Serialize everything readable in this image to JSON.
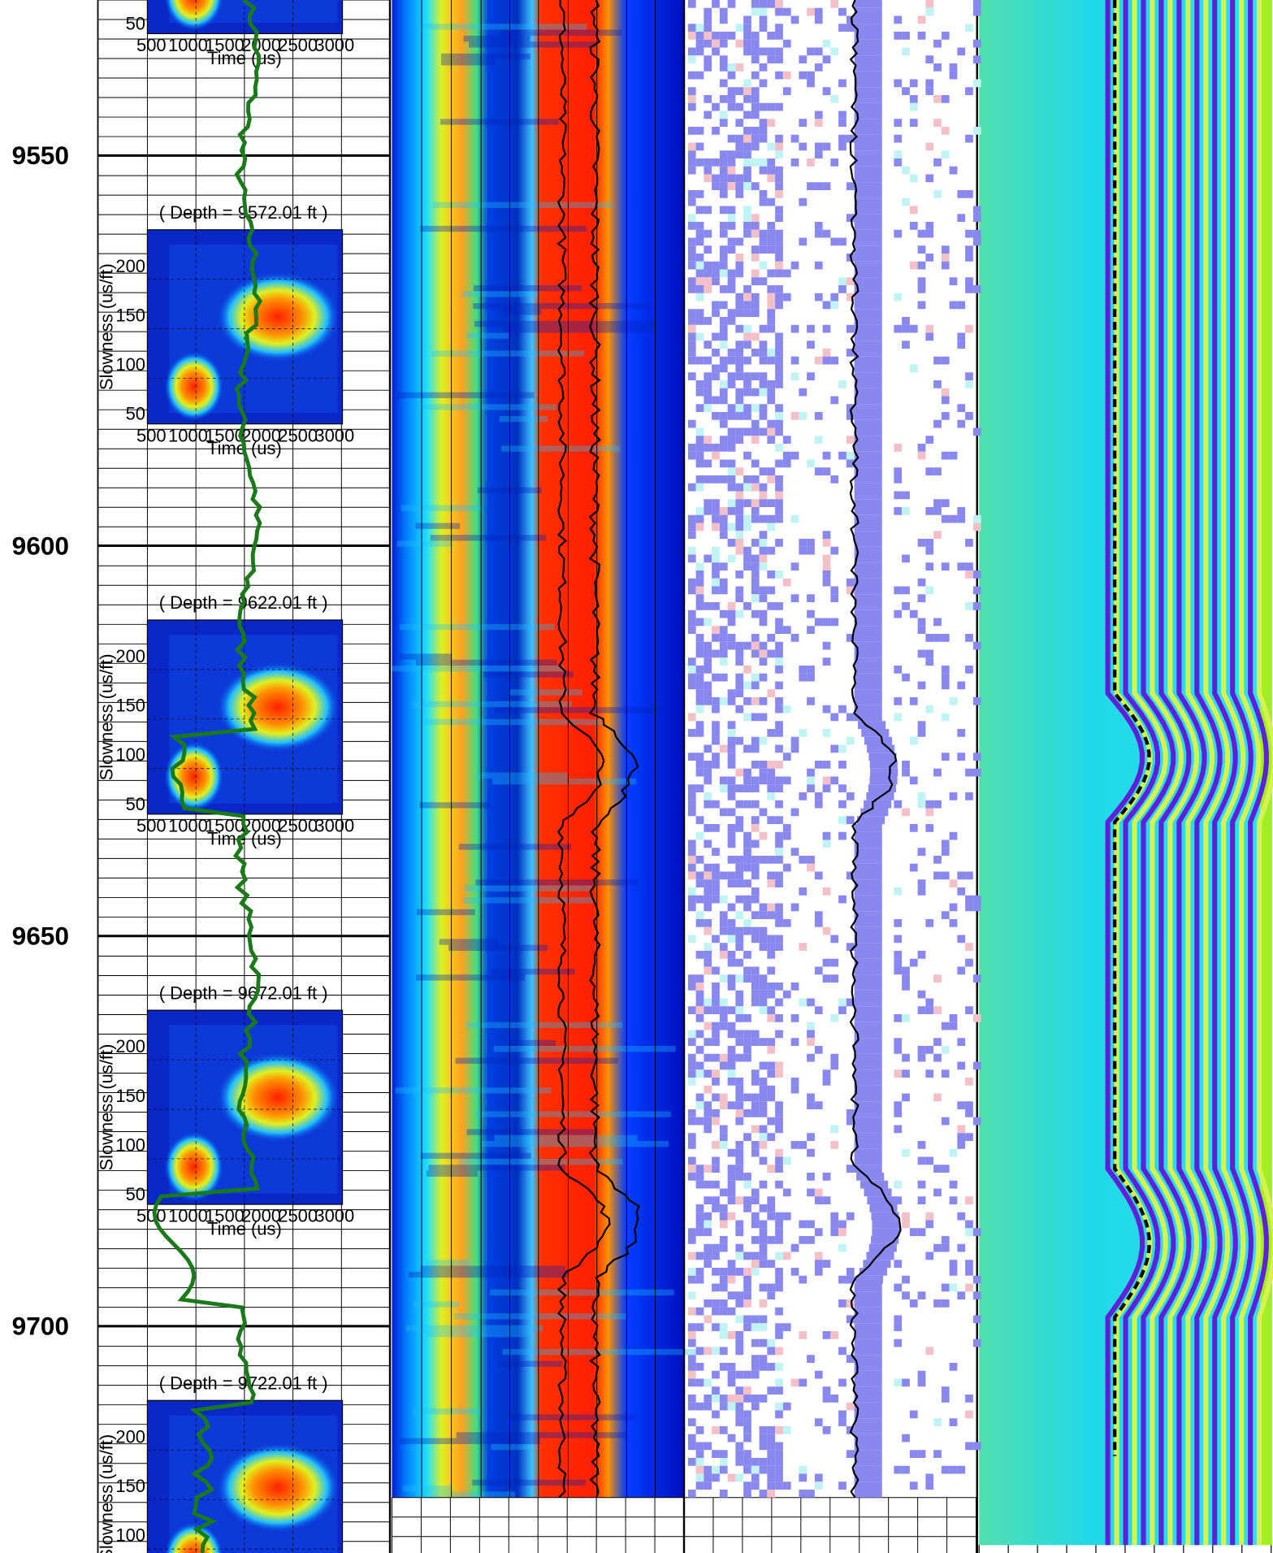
{
  "depth_track": {
    "labels": [
      "9550",
      "9600",
      "9650",
      "9700"
    ]
  },
  "insets": [
    {
      "yticks": [
        "50"
      ],
      "xticks": [
        "500",
        "1000",
        "1500",
        "2000",
        "2500",
        "3000"
      ],
      "xlabel": "Time (us)"
    },
    {
      "title": "( Depth = 9572.01 ft )",
      "ylabel": "Slowness (us/ft)",
      "yticks": [
        "200",
        "150",
        "100",
        "50"
      ],
      "xticks": [
        "500",
        "1000",
        "1500",
        "2000",
        "2500",
        "3000"
      ],
      "xlabel": "Time (us)"
    },
    {
      "title": "( Depth = 9622.01 ft )",
      "ylabel": "Slowness (us/ft)",
      "yticks": [
        "200",
        "150",
        "100",
        "50"
      ],
      "xticks": [
        "500",
        "1000",
        "1500",
        "2000",
        "2500",
        "3000"
      ],
      "xlabel": "Time (us)"
    },
    {
      "title": "( Depth = 9672.01 ft )",
      "ylabel": "Slowness (us/ft)",
      "yticks": [
        "200",
        "150",
        "100",
        "50"
      ],
      "xticks": [
        "500",
        "1000",
        "1500",
        "2000",
        "2500",
        "3000"
      ],
      "xlabel": "Time (us)"
    },
    {
      "title": "( Depth = 9722.01 ft )",
      "ylabel": "Slowness (us/ft)",
      "yticks": [
        "200",
        "150",
        "100"
      ]
    }
  ]
}
